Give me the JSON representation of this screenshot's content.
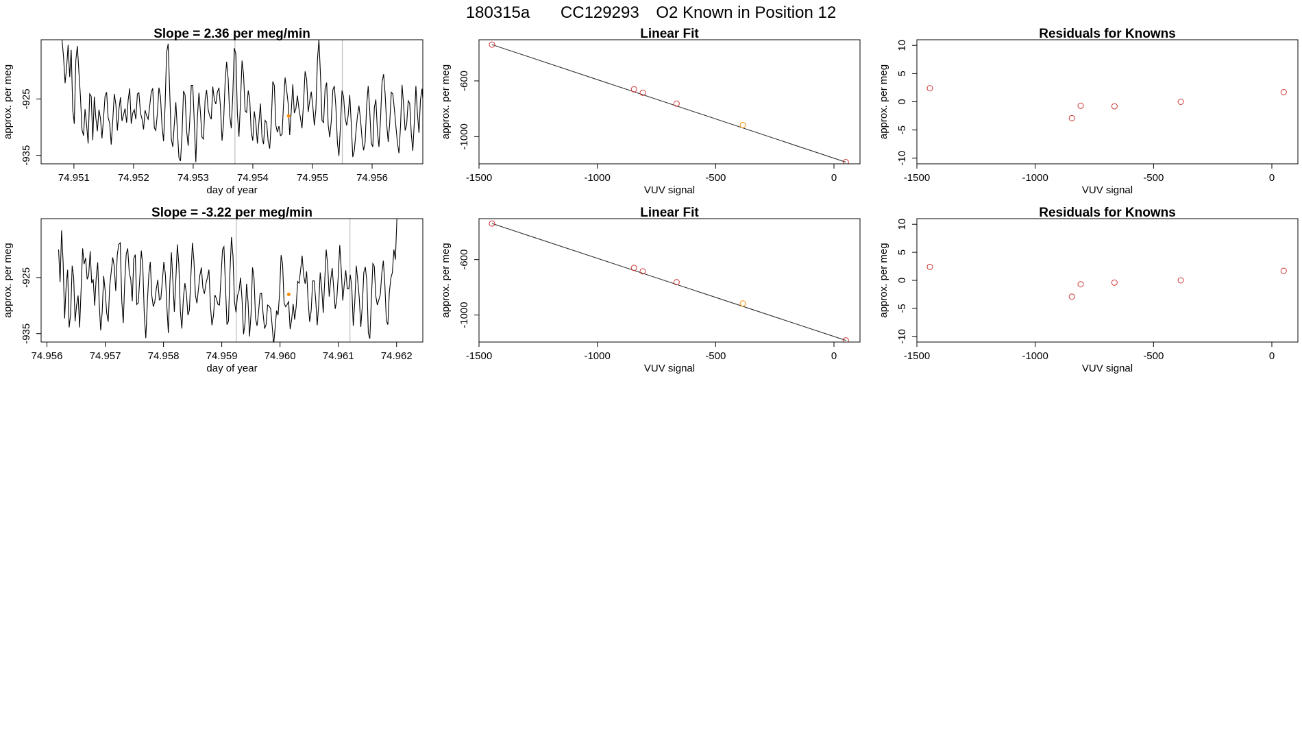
{
  "header": {
    "run": "180315a",
    "cylinder": "CC129293",
    "description": "O2 Known in Position  12"
  },
  "colors": {
    "line": "#000000",
    "point_known": "#cd3333",
    "point_highlight": "#ff8c00",
    "vline": "#bdbdbd",
    "fit_line": "#333333"
  },
  "chart_data": [
    {
      "id": "ts-top",
      "type": "line",
      "title": "Slope =  2.36  per meg/min",
      "xlabel": "day of year",
      "ylabel": "approx. per meg",
      "xlim": [
        74.95045,
        74.95685
      ],
      "ylim": [
        -936.5,
        -914.5
      ],
      "xticks": [
        "74.951",
        "74.952",
        "74.953",
        "74.954",
        "74.955",
        "74.956"
      ],
      "yticks": [
        "-925",
        "-935"
      ],
      "x_start": 74.9508,
      "x_step": 2.58e-05,
      "y": [
        -914.5,
        -917.5,
        -922.2,
        -919.4,
        -915.4,
        -921.1,
        -916.3,
        -927.0,
        -929.4,
        -918.1,
        -915.6,
        -920.3,
        -924.6,
        -930.5,
        -931.5,
        -926.8,
        -929.6,
        -932.9,
        -924.1,
        -924.5,
        -932.3,
        -924.6,
        -928.4,
        -930.7,
        -926.9,
        -928.4,
        -932.0,
        -928.4,
        -924.5,
        -923.8,
        -928.3,
        -929.3,
        -933.1,
        -928.7,
        -924.1,
        -926.0,
        -930.6,
        -926.9,
        -924.7,
        -928.9,
        -927.8,
        -926.7,
        -929.2,
        -925.2,
        -923.1,
        -929.4,
        -927.5,
        -926.9,
        -928.6,
        -924.1,
        -923.9,
        -927.5,
        -928.5,
        -930.4,
        -927.0,
        -928.0,
        -928.6,
        -926.3,
        -923.8,
        -923.1,
        -930.1,
        -930.6,
        -927.5,
        -923.0,
        -924.6,
        -929.7,
        -932.5,
        -926.3,
        -916.8,
        -915.2,
        -923.5,
        -932.0,
        -933.5,
        -929.4,
        -925.6,
        -930.7,
        -935.4,
        -936.0,
        -931.4,
        -923.6,
        -924.3,
        -930.6,
        -933.3,
        -929.2,
        -922.6,
        -922.6,
        -929.4,
        -936.2,
        -928.2,
        -923.9,
        -927.4,
        -931.8,
        -932.1,
        -925.1,
        -923.4,
        -926.9,
        -928.0,
        -928.6,
        -922.8,
        -925.1,
        -925.9,
        -923.8,
        -923.0,
        -926.3,
        -932.4,
        -929.3,
        -922.1,
        -918.4,
        -921.5,
        -927.9,
        -930.2,
        -924.3,
        -916.0,
        -917.0,
        -927.6,
        -931.7,
        -925.7,
        -918.2,
        -920.6,
        -927.1,
        -927.4,
        -923.5,
        -925.0,
        -930.9,
        -932.4,
        -927.2,
        -929.3,
        -932.9,
        -929.1,
        -925.8,
        -931.9,
        -933.0,
        -928.8,
        -929.2,
        -932.5,
        -933.8,
        -929.4,
        -921.9,
        -922.6,
        -929.7,
        -930.9,
        -929.8,
        -931.5,
        -931.3,
        -925.8,
        -921.2,
        -923.4,
        -925.8,
        -931.4,
        -927.2,
        -922.4,
        -927.5,
        -926.7,
        -924.4,
        -926.8,
        -928.4,
        -930.2,
        -925.6,
        -920.1,
        -921.5,
        -927.3,
        -925.3,
        -923.7,
        -926.3,
        -929.7,
        -926.8,
        -918.1,
        -914.5,
        -920.8,
        -928.8,
        -929.2,
        -923.2,
        -922.1,
        -929.6,
        -931.8,
        -929.0,
        -923.4,
        -922.7,
        -926.3,
        -932.8,
        -935.1,
        -929.5,
        -923.5,
        -924.6,
        -928.3,
        -929.7,
        -927.9,
        -924.3,
        -929.4,
        -935.3,
        -934.1,
        -931.0,
        -928.0,
        -926.2,
        -928.6,
        -932.0,
        -934.1,
        -932.7,
        -926.1,
        -922.7,
        -926.9,
        -932.8,
        -933.5,
        -926.5,
        -925.1,
        -930.8,
        -933.5,
        -928.6,
        -922.0,
        -920.6,
        -924.1,
        -929.4,
        -932.6,
        -929.3,
        -923.8,
        -924.1,
        -926.8,
        -929.8,
        -932.8,
        -934.6,
        -929.8,
        -922.5,
        -925.9,
        -930.6,
        -929.6,
        -925.3,
        -925.8,
        -931.2,
        -934.2,
        -928.9,
        -922.7,
        -927.5,
        -931.0,
        -925.1,
        -923.2,
        -926.8,
        -924.2,
        -922.7,
        -928.4,
        -934.5,
        -934.0,
        -927.5,
        -925.9,
        -929.5
      ],
      "vlines": [
        74.9537,
        74.9555
      ],
      "highlight_points": [
        {
          "x": 74.9546,
          "y": -928.0
        }
      ]
    },
    {
      "id": "fit-top",
      "type": "scatter",
      "title": "Linear Fit",
      "xlabel": "VUV signal",
      "ylabel": "approx. per meg",
      "xlim": [
        -1500,
        110
      ],
      "ylim": [
        -1195,
        -305
      ],
      "xticks": [
        "-1500",
        "-1000",
        "-500",
        "0"
      ],
      "yticks": [
        "-600",
        "-1000"
      ],
      "fit_line": {
        "x1": -1445,
        "y1": -340,
        "x2": 50,
        "y2": -1183
      },
      "points": [
        {
          "x": -1445,
          "y": -340
        },
        {
          "x": -845,
          "y": -660
        },
        {
          "x": -808,
          "y": -685
        },
        {
          "x": -665,
          "y": -763
        },
        {
          "x": -385,
          "y": -917
        },
        {
          "x": 50,
          "y": -1183
        }
      ],
      "highlight_index": 4
    },
    {
      "id": "res-top",
      "type": "scatter",
      "title": "Residuals for Knowns",
      "xlabel": "VUV signal",
      "ylabel": "approx. per meg",
      "xlim": [
        -1500,
        110
      ],
      "ylim": [
        -11,
        11
      ],
      "xticks": [
        "-1500",
        "-1000",
        "-500",
        "0"
      ],
      "yticks": [
        "-10",
        "-5",
        "0",
        "5",
        "10"
      ],
      "points": [
        {
          "x": -1445,
          "y": 2.4
        },
        {
          "x": -845,
          "y": -2.9
        },
        {
          "x": -808,
          "y": -0.7
        },
        {
          "x": -665,
          "y": -0.8
        },
        {
          "x": -385,
          "y": 0.0
        },
        {
          "x": 50,
          "y": 1.7
        }
      ]
    },
    {
      "id": "ts-bottom",
      "type": "line",
      "title": "Slope =  -3.22  per meg/min",
      "xlabel": "day of year",
      "ylabel": "approx. per meg",
      "xlim": [
        74.9559,
        74.96245
      ],
      "ylim": [
        -936.5,
        -914.5
      ],
      "xticks": [
        "74.956",
        "74.957",
        "74.958",
        "74.959",
        "74.960",
        "74.961",
        "74.962"
      ],
      "yticks": [
        "-925",
        "-935"
      ],
      "x_start": 74.9562,
      "x_step": 2.58e-05,
      "y": [
        -920.0,
        -925.8,
        -916.6,
        -922.2,
        -932.3,
        -926.6,
        -923.6,
        -933.9,
        -931.5,
        -922.9,
        -924.9,
        -932.8,
        -929.9,
        -928.2,
        -933.9,
        -927.0,
        -919.8,
        -922.6,
        -921.5,
        -925.3,
        -924.6,
        -920.3,
        -926.0,
        -925.3,
        -930.0,
        -925.0,
        -922.3,
        -929.4,
        -934.4,
        -931.2,
        -924.7,
        -927.4,
        -931.3,
        -932.9,
        -926.5,
        -924.0,
        -921.4,
        -923.0,
        -927.4,
        -921.0,
        -919.1,
        -918.8,
        -929.1,
        -933.1,
        -925.8,
        -920.8,
        -919.8,
        -924.1,
        -925.3,
        -929.2,
        -921.6,
        -920.9,
        -929.8,
        -929.5,
        -925.1,
        -920.2,
        -923.0,
        -931.8,
        -935.8,
        -929.5,
        -924.4,
        -922.2,
        -928.2,
        -930.2,
        -929.3,
        -927.0,
        -925.4,
        -929.0,
        -928.8,
        -925.7,
        -922.2,
        -924.4,
        -930.2,
        -934.9,
        -926.0,
        -920.5,
        -925.6,
        -931.1,
        -925.4,
        -919.1,
        -922.7,
        -931.0,
        -934.1,
        -928.7,
        -926.0,
        -927.8,
        -931.7,
        -930.8,
        -924.6,
        -918.8,
        -922.0,
        -928.2,
        -929.6,
        -927.0,
        -924.6,
        -923.2,
        -926.9,
        -927.9,
        -926.1,
        -925.0,
        -923.6,
        -930.1,
        -933.5,
        -931.8,
        -928.1,
        -928.8,
        -929.8,
        -929.9,
        -925.0,
        -920.0,
        -919.5,
        -926.4,
        -933.4,
        -932.8,
        -924.0,
        -917.8,
        -921.2,
        -929.3,
        -931.2,
        -928.2,
        -927.4,
        -925.0,
        -928.9,
        -935.1,
        -933.1,
        -926.1,
        -929.4,
        -935.5,
        -931.6,
        -923.2,
        -925.1,
        -932.3,
        -933.6,
        -931.2,
        -927.9,
        -927.8,
        -931.4,
        -934.1,
        -933.4,
        -929.9,
        -930.1,
        -930.5,
        -933.5,
        -937.0,
        -934.1,
        -930.9,
        -931.7,
        -927.8,
        -921.0,
        -922.6,
        -929.6,
        -930.2,
        -929.8,
        -929.3,
        -934.2,
        -932.5,
        -929.7,
        -932.5,
        -930.2,
        -925.7,
        -926.0,
        -923.6,
        -921.1,
        -924.6,
        -926.1,
        -923.9,
        -929.3,
        -932.9,
        -930.9,
        -925.6,
        -925.6,
        -929.0,
        -933.5,
        -929.8,
        -924.1,
        -927.0,
        -931.3,
        -925.7,
        -920.0,
        -922.8,
        -928.4,
        -925.4,
        -923.3,
        -927.0,
        -930.6,
        -929.0,
        -924.7,
        -919.2,
        -923.6,
        -929.1,
        -926.2,
        -923.7,
        -927.0,
        -927.0,
        -924.5,
        -926.5,
        -933.6,
        -929.5,
        -922.9,
        -925.6,
        -928.7,
        -933.8,
        -930.1,
        -924.1,
        -923.1,
        -925.6,
        -934.9,
        -935.9,
        -929.0,
        -922.5,
        -923.0,
        -928.3,
        -929.9,
        -929.0,
        -928.0,
        -924.2,
        -922.0,
        -926.2,
        -932.7,
        -933.4,
        -927.6,
        -925.1,
        -924.1,
        -920.0,
        -921.8,
        -914.5,
        -914.5
      ],
      "vlines": [
        74.95925,
        74.9612
      ],
      "highlight_points": [
        {
          "x": 74.96015,
          "y": -928.0
        }
      ]
    },
    {
      "id": "fit-bottom",
      "type": "scatter",
      "title": "Linear Fit",
      "xlabel": "VUV signal",
      "ylabel": "approx. per meg",
      "xlim": [
        -1500,
        110
      ],
      "ylim": [
        -1195,
        -305
      ],
      "xticks": [
        "-1500",
        "-1000",
        "-500",
        "0"
      ],
      "yticks": [
        "-600",
        "-1000"
      ],
      "fit_line": {
        "x1": -1445,
        "y1": -340,
        "x2": 50,
        "y2": -1183
      },
      "points": [
        {
          "x": -1445,
          "y": -340
        },
        {
          "x": -845,
          "y": -660
        },
        {
          "x": -808,
          "y": -685
        },
        {
          "x": -665,
          "y": -763
        },
        {
          "x": -385,
          "y": -917
        },
        {
          "x": 50,
          "y": -1183
        }
      ],
      "highlight_index": 4
    },
    {
      "id": "res-bottom",
      "type": "scatter",
      "title": "Residuals for Knowns",
      "xlabel": "VUV signal",
      "ylabel": "approx. per meg",
      "xlim": [
        -1500,
        110
      ],
      "ylim": [
        -11,
        11
      ],
      "xticks": [
        "-1500",
        "-1000",
        "-500",
        "0"
      ],
      "yticks": [
        "-10",
        "-5",
        "0",
        "5",
        "10"
      ],
      "points": [
        {
          "x": -1445,
          "y": 2.4
        },
        {
          "x": -845,
          "y": -2.9
        },
        {
          "x": -808,
          "y": -0.7
        },
        {
          "x": -665,
          "y": -0.4
        },
        {
          "x": -385,
          "y": 0.0
        },
        {
          "x": 50,
          "y": 1.7
        }
      ]
    }
  ]
}
